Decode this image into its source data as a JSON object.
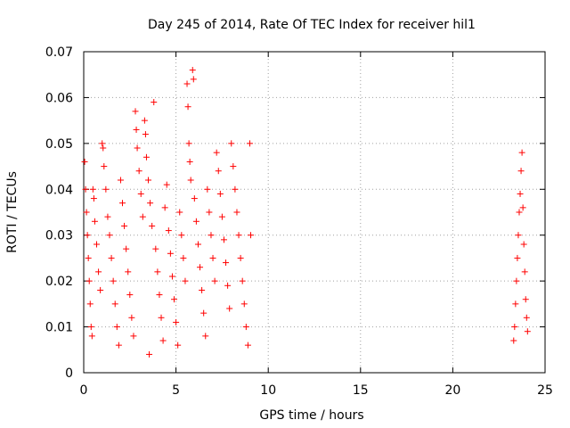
{
  "chart_data": {
    "type": "scatter",
    "title": "Day 245 of 2014, Rate Of TEC Index for receiver hil1",
    "xlabel": "GPS time / hours",
    "ylabel": "ROTI / TECUs",
    "xlim": [
      0,
      25
    ],
    "ylim": [
      0,
      0.07
    ],
    "xticks": [
      "0",
      "5",
      "10",
      "15",
      "20",
      "25"
    ],
    "yticks": [
      "0",
      "0.01",
      "0.02",
      "0.03",
      "0.04",
      "0.05",
      "0.06",
      "0.07"
    ],
    "grid": true,
    "marker": "plus",
    "color": "#ff0000",
    "series": [
      {
        "values": [
          [
            0.05,
            0.046
          ],
          [
            0.1,
            0.04
          ],
          [
            0.15,
            0.035
          ],
          [
            0.2,
            0.03
          ],
          [
            0.25,
            0.025
          ],
          [
            0.3,
            0.02
          ],
          [
            0.35,
            0.015
          ],
          [
            0.4,
            0.01
          ],
          [
            0.45,
            0.008
          ],
          [
            0.5,
            0.04
          ],
          [
            0.55,
            0.038
          ],
          [
            0.6,
            0.033
          ],
          [
            0.7,
            0.028
          ],
          [
            0.8,
            0.022
          ],
          [
            0.9,
            0.018
          ],
          [
            1.0,
            0.05
          ],
          [
            1.05,
            0.049
          ],
          [
            1.1,
            0.045
          ],
          [
            1.2,
            0.04
          ],
          [
            1.3,
            0.034
          ],
          [
            1.4,
            0.03
          ],
          [
            1.5,
            0.025
          ],
          [
            1.6,
            0.02
          ],
          [
            1.7,
            0.015
          ],
          [
            1.8,
            0.01
          ],
          [
            1.9,
            0.006
          ],
          [
            2.0,
            0.042
          ],
          [
            2.1,
            0.037
          ],
          [
            2.2,
            0.032
          ],
          [
            2.3,
            0.027
          ],
          [
            2.4,
            0.022
          ],
          [
            2.5,
            0.017
          ],
          [
            2.6,
            0.012
          ],
          [
            2.7,
            0.008
          ],
          [
            2.8,
            0.057
          ],
          [
            2.85,
            0.053
          ],
          [
            2.9,
            0.049
          ],
          [
            3.0,
            0.044
          ],
          [
            3.1,
            0.039
          ],
          [
            3.2,
            0.034
          ],
          [
            3.3,
            0.055
          ],
          [
            3.35,
            0.052
          ],
          [
            3.4,
            0.047
          ],
          [
            3.5,
            0.042
          ],
          [
            3.55,
            0.004
          ],
          [
            3.6,
            0.037
          ],
          [
            3.7,
            0.032
          ],
          [
            3.8,
            0.059
          ],
          [
            3.9,
            0.027
          ],
          [
            4.0,
            0.022
          ],
          [
            4.1,
            0.017
          ],
          [
            4.2,
            0.012
          ],
          [
            4.3,
            0.007
          ],
          [
            4.4,
            0.036
          ],
          [
            4.5,
            0.041
          ],
          [
            4.6,
            0.031
          ],
          [
            4.7,
            0.026
          ],
          [
            4.8,
            0.021
          ],
          [
            4.9,
            0.016
          ],
          [
            5.0,
            0.011
          ],
          [
            5.1,
            0.006
          ],
          [
            5.2,
            0.035
          ],
          [
            5.3,
            0.03
          ],
          [
            5.4,
            0.025
          ],
          [
            5.5,
            0.02
          ],
          [
            5.6,
            0.063
          ],
          [
            5.65,
            0.058
          ],
          [
            5.7,
            0.05
          ],
          [
            5.75,
            0.046
          ],
          [
            5.8,
            0.042
          ],
          [
            5.9,
            0.066
          ],
          [
            5.95,
            0.064
          ],
          [
            6.0,
            0.038
          ],
          [
            6.1,
            0.033
          ],
          [
            6.2,
            0.028
          ],
          [
            6.3,
            0.023
          ],
          [
            6.4,
            0.018
          ],
          [
            6.5,
            0.013
          ],
          [
            6.6,
            0.008
          ],
          [
            6.7,
            0.04
          ],
          [
            6.8,
            0.035
          ],
          [
            6.9,
            0.03
          ],
          [
            7.0,
            0.025
          ],
          [
            7.1,
            0.02
          ],
          [
            7.2,
            0.048
          ],
          [
            7.3,
            0.044
          ],
          [
            7.4,
            0.039
          ],
          [
            7.5,
            0.034
          ],
          [
            7.6,
            0.029
          ],
          [
            7.7,
            0.024
          ],
          [
            7.8,
            0.019
          ],
          [
            7.9,
            0.014
          ],
          [
            8.0,
            0.05
          ],
          [
            8.1,
            0.045
          ],
          [
            8.2,
            0.04
          ],
          [
            8.3,
            0.035
          ],
          [
            8.4,
            0.03
          ],
          [
            8.5,
            0.025
          ],
          [
            8.6,
            0.02
          ],
          [
            8.7,
            0.015
          ],
          [
            8.8,
            0.01
          ],
          [
            8.9,
            0.006
          ],
          [
            9.0,
            0.05
          ],
          [
            9.05,
            0.03
          ],
          [
            23.3,
            0.007
          ],
          [
            23.35,
            0.01
          ],
          [
            23.4,
            0.015
          ],
          [
            23.45,
            0.02
          ],
          [
            23.5,
            0.025
          ],
          [
            23.55,
            0.03
          ],
          [
            23.6,
            0.035
          ],
          [
            23.65,
            0.039
          ],
          [
            23.7,
            0.044
          ],
          [
            23.75,
            0.048
          ],
          [
            23.8,
            0.036
          ],
          [
            23.85,
            0.028
          ],
          [
            23.9,
            0.022
          ],
          [
            23.95,
            0.016
          ],
          [
            24.0,
            0.012
          ],
          [
            24.05,
            0.009
          ]
        ]
      }
    ]
  }
}
